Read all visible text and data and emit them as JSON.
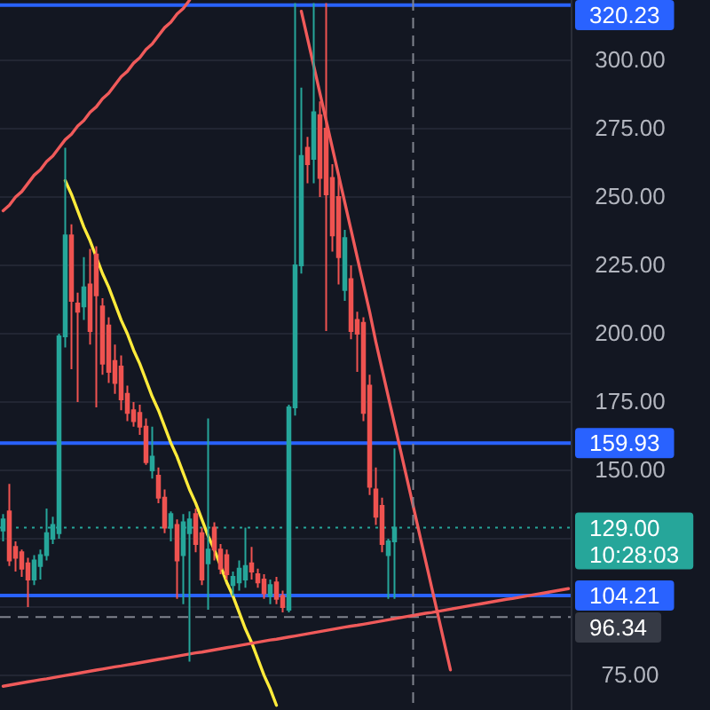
{
  "chart_data": {
    "type": "candlestick",
    "categories": [
      null,
      null,
      null,
      null,
      null,
      null,
      null,
      null,
      null,
      null,
      null,
      null,
      null,
      null,
      null,
      null,
      null,
      null,
      null,
      null,
      null,
      null,
      null,
      null,
      null,
      null,
      null,
      null,
      null,
      null,
      null,
      null,
      null,
      null,
      null,
      null,
      null,
      null,
      null,
      null,
      null,
      null,
      null,
      null,
      null,
      null,
      null,
      null,
      null,
      null,
      null,
      null,
      null,
      null,
      null,
      null,
      null,
      null,
      null,
      null,
      null,
      null,
      null,
      null,
      null,
      null,
      null,
      null,
      null,
      null,
      null,
      null,
      null,
      null,
      null,
      null,
      null,
      null,
      null,
      null,
      null,
      null,
      null,
      null,
      null,
      null,
      null,
      null,
      null,
      null,
      null,
      null
    ],
    "ohlc": [
      [
        128,
        134,
        124,
        132
      ],
      [
        135,
        145,
        115,
        117
      ],
      [
        122,
        124,
        113,
        118
      ],
      [
        120,
        121,
        111,
        114
      ],
      [
        116,
        118,
        100,
        110
      ],
      [
        110,
        119,
        108,
        117
      ],
      [
        115,
        121,
        110,
        119
      ],
      [
        119,
        136,
        117,
        127
      ],
      [
        125,
        133,
        123,
        130
      ],
      [
        127,
        200,
        125,
        199
      ],
      [
        199,
        268,
        195,
        236
      ],
      [
        236,
        240,
        187,
        212
      ],
      [
        211,
        215,
        175,
        208
      ],
      [
        210,
        228,
        205,
        217
      ],
      [
        218,
        231,
        196,
        201
      ],
      [
        229,
        232,
        173,
        214
      ],
      [
        210,
        213,
        185,
        189
      ],
      [
        203,
        206,
        182,
        186
      ],
      [
        190,
        196,
        178,
        182
      ],
      [
        188,
        192,
        172,
        176
      ],
      [
        178,
        181,
        168,
        171
      ],
      [
        172,
        175,
        166,
        168
      ],
      [
        171,
        174,
        163,
        166
      ],
      [
        166,
        169,
        152,
        153
      ],
      [
        150,
        166,
        147,
        155
      ],
      [
        148,
        151,
        138,
        140
      ],
      [
        140,
        143,
        127,
        129
      ],
      [
        129,
        135,
        124,
        134
      ],
      [
        130,
        132,
        103,
        117
      ],
      [
        119,
        134,
        101,
        131
      ],
      [
        127,
        135,
        80,
        132
      ],
      [
        134,
        136,
        120,
        123
      ],
      [
        127,
        129,
        108,
        110
      ],
      [
        116,
        169,
        99,
        121
      ],
      [
        129,
        131,
        117,
        121
      ],
      [
        121,
        123,
        112,
        114
      ],
      [
        119,
        121,
        110,
        112
      ],
      [
        108,
        113,
        104,
        111
      ],
      [
        109,
        117,
        106,
        114
      ],
      [
        110,
        129,
        107,
        115
      ],
      [
        116,
        122,
        110,
        113
      ],
      [
        112,
        114,
        107,
        109
      ],
      [
        110,
        112,
        103,
        105
      ],
      [
        104,
        110,
        101,
        108
      ],
      [
        109,
        111,
        101,
        103
      ],
      [
        104,
        106,
        98,
        100
      ],
      [
        99,
        174,
        98,
        173
      ],
      [
        173,
        321,
        170,
        225
      ],
      [
        225,
        290,
        222,
        265
      ],
      [
        268,
        272,
        255,
        262
      ],
      [
        264,
        321,
        255,
        281
      ],
      [
        280,
        285,
        250,
        257
      ],
      [
        275,
        321,
        201,
        251
      ],
      [
        257,
        262,
        230,
        236
      ],
      [
        250,
        258,
        218,
        228
      ],
      [
        216,
        238,
        212,
        235
      ],
      [
        220,
        225,
        198,
        201
      ],
      [
        205,
        208,
        186,
        200
      ],
      [
        204,
        206,
        168,
        171
      ],
      [
        181,
        185,
        141,
        144
      ],
      [
        143,
        151,
        130,
        133
      ],
      [
        137,
        140,
        120,
        123
      ],
      [
        119,
        125,
        103,
        124
      ],
      [
        124,
        158,
        103,
        129
      ],
      null,
      null,
      null,
      null,
      null,
      null,
      null,
      null,
      null,
      null,
      null,
      null,
      null,
      null,
      null,
      null,
      null,
      null,
      null,
      null,
      null,
      null,
      null,
      null,
      null,
      null,
      null,
      null
    ],
    "colors": [
      "#26a69a",
      "#ef5350",
      "#ef5350",
      "#ef5350",
      "#ef5350",
      "#26a69a",
      "#26a69a",
      "#26a69a",
      "#26a69a",
      "#26a69a",
      "#26a69a",
      "#ef5350",
      "#ef5350",
      "#26a69a",
      "#ef5350",
      "#ef5350",
      "#ef5350",
      "#ef5350",
      "#ef5350",
      "#ef5350",
      "#ef5350",
      "#ef5350",
      "#ef5350",
      "#ef5350",
      "#26a69a",
      "#ef5350",
      "#ef5350",
      "#26a69a",
      "#ef5350",
      "#26a69a",
      "#26a69a",
      "#ef5350",
      "#ef5350",
      "#26a69a",
      "#ef5350",
      "#ef5350",
      "#ef5350",
      "#26a69a",
      "#26a69a",
      "#26a69a",
      "#ef5350",
      "#ef5350",
      "#ef5350",
      "#26a69a",
      "#ef5350",
      "#ef5350",
      "#26a69a",
      "#26a69a",
      "#26a69a",
      "#ef5350",
      "#26a69a",
      "#ef5350",
      "#ef5350",
      "#ef5350",
      "#ef5350",
      "#26a69a",
      "#ef5350",
      "#ef5350",
      "#ef5350",
      "#ef5350",
      "#ef5350",
      "#ef5350",
      "#26a69a",
      "#26a69a",
      null,
      null,
      null,
      null,
      null,
      null,
      null,
      null,
      null,
      null,
      null,
      null,
      null,
      null,
      null,
      null,
      null,
      null,
      null,
      null,
      null,
      null,
      null,
      null,
      null,
      null,
      null,
      null
    ],
    "series": [
      {
        "type": "line",
        "color": "#f05a5a",
        "values": [
          245,
          247,
          250,
          252,
          255,
          258,
          260,
          263,
          265,
          268,
          271,
          273,
          276,
          278,
          281,
          283,
          286,
          288,
          291,
          294,
          296,
          299,
          301,
          304,
          306,
          309,
          312,
          314,
          317,
          319,
          322,
          null,
          null,
          null,
          null,
          null,
          null,
          null,
          null,
          null,
          null,
          null,
          null,
          null,
          null,
          null,
          null,
          null,
          null,
          null,
          null,
          null,
          null,
          null,
          null,
          null,
          null,
          null,
          null,
          null,
          null,
          null,
          null,
          null,
          null,
          null,
          null,
          null,
          null,
          null,
          null,
          null,
          null,
          null,
          null,
          null,
          null,
          null,
          null,
          null,
          null,
          null,
          null,
          null,
          null,
          null,
          null,
          null,
          null,
          null,
          null,
          null
        ]
      },
      {
        "type": "line",
        "color": "#ffeb3b",
        "values": [
          null,
          null,
          null,
          null,
          null,
          null,
          null,
          null,
          null,
          null,
          256,
          251,
          245,
          239,
          234,
          228,
          222,
          217,
          211,
          205,
          200,
          194,
          189,
          183,
          177,
          172,
          166,
          160,
          155,
          149,
          143,
          138,
          132,
          126,
          121,
          115,
          109,
          104,
          98,
          92,
          87,
          81,
          75,
          70,
          64,
          null,
          null,
          null,
          null,
          null,
          null,
          null,
          null,
          null,
          null,
          null,
          null,
          null,
          null,
          null,
          null,
          null,
          null,
          null,
          null,
          null,
          null,
          null,
          null,
          null,
          null,
          null,
          null,
          null,
          null,
          null,
          null,
          null,
          null,
          null,
          null,
          null,
          null,
          null,
          null,
          null,
          null,
          null,
          null,
          null,
          null,
          null
        ]
      },
      {
        "type": "line",
        "color": "#f05a5a",
        "values": [
          null,
          null,
          null,
          null,
          null,
          null,
          null,
          null,
          null,
          null,
          null,
          null,
          null,
          null,
          null,
          null,
          null,
          null,
          null,
          null,
          null,
          null,
          null,
          null,
          null,
          null,
          null,
          null,
          null,
          null,
          null,
          null,
          null,
          null,
          null,
          null,
          null,
          null,
          null,
          null,
          null,
          null,
          null,
          null,
          null,
          null,
          null,
          null,
          318,
          308,
          298,
          288,
          278,
          268,
          258,
          248,
          238,
          228,
          218,
          208,
          197,
          187,
          177,
          167,
          157,
          147,
          137,
          127,
          117,
          107,
          97,
          87,
          77,
          null,
          null,
          null,
          null,
          null,
          null,
          null,
          null,
          null,
          null,
          null,
          null,
          null,
          null,
          null,
          null,
          null,
          null,
          null
        ]
      },
      {
        "type": "line",
        "color": "#f05a5a",
        "values": [
          71.0,
          71.4,
          71.8,
          72.2,
          72.6,
          73.0,
          73.4,
          73.7,
          74.1,
          74.5,
          74.9,
          75.3,
          75.7,
          76.1,
          76.5,
          76.9,
          77.3,
          77.7,
          78.1,
          78.4,
          78.8,
          79.2,
          79.6,
          80.0,
          80.4,
          80.8,
          81.2,
          81.6,
          82.0,
          82.4,
          82.8,
          83.2,
          83.5,
          83.9,
          84.3,
          84.7,
          85.1,
          85.5,
          85.9,
          86.3,
          86.7,
          87.1,
          87.5,
          87.9,
          88.2,
          88.6,
          89.0,
          89.4,
          89.8,
          90.2,
          90.6,
          91.0,
          91.4,
          91.8,
          92.2,
          92.6,
          93.0,
          93.3,
          93.7,
          94.1,
          94.5,
          94.9,
          95.3,
          95.7,
          96.1,
          96.5,
          96.9,
          97.3,
          97.7,
          98.0,
          98.4,
          98.8,
          99.2,
          99.6,
          100.0,
          100.4,
          100.8,
          101.2,
          101.6,
          102.0,
          102.4,
          102.8,
          103.1,
          103.5,
          103.9,
          104.3,
          104.7,
          105.1,
          105.5,
          105.9,
          106.3,
          106.7
        ]
      }
    ],
    "ylim": [
      62.3,
      322.1
    ],
    "yticks": [
      {
        "value": 75,
        "label": "75.00"
      },
      {
        "value": 100,
        "label": null
      },
      {
        "value": 125,
        "label": null
      },
      {
        "value": 150,
        "label": "150.00"
      },
      {
        "value": 175,
        "label": "175.00"
      },
      {
        "value": 200,
        "label": "200.00"
      },
      {
        "value": 225,
        "label": "225.00"
      },
      {
        "value": 250,
        "label": "250.00"
      },
      {
        "value": 275,
        "label": "275.00"
      },
      {
        "value": 300,
        "label": "300.00"
      }
    ],
    "grid": "y",
    "tick_labels": "y",
    "ref_lines": [
      {
        "axis": "y",
        "value": 320.23,
        "label": "320.23",
        "color": "#2962ff"
      },
      {
        "axis": "y",
        "value": 159.93,
        "label": "159.93",
        "color": "#2962ff"
      },
      {
        "axis": "y",
        "value": 129.0,
        "label": "129.00\n10:28:03",
        "color": "#26a69a",
        "line_style": "dotted"
      },
      {
        "axis": "y",
        "value": 104.21,
        "label": "104.21",
        "color": "#2962ff"
      },
      {
        "axis": "y",
        "value": 96.34,
        "label": "96.34",
        "color": "#80838d",
        "line_style": "dashed"
      }
    ]
  }
}
